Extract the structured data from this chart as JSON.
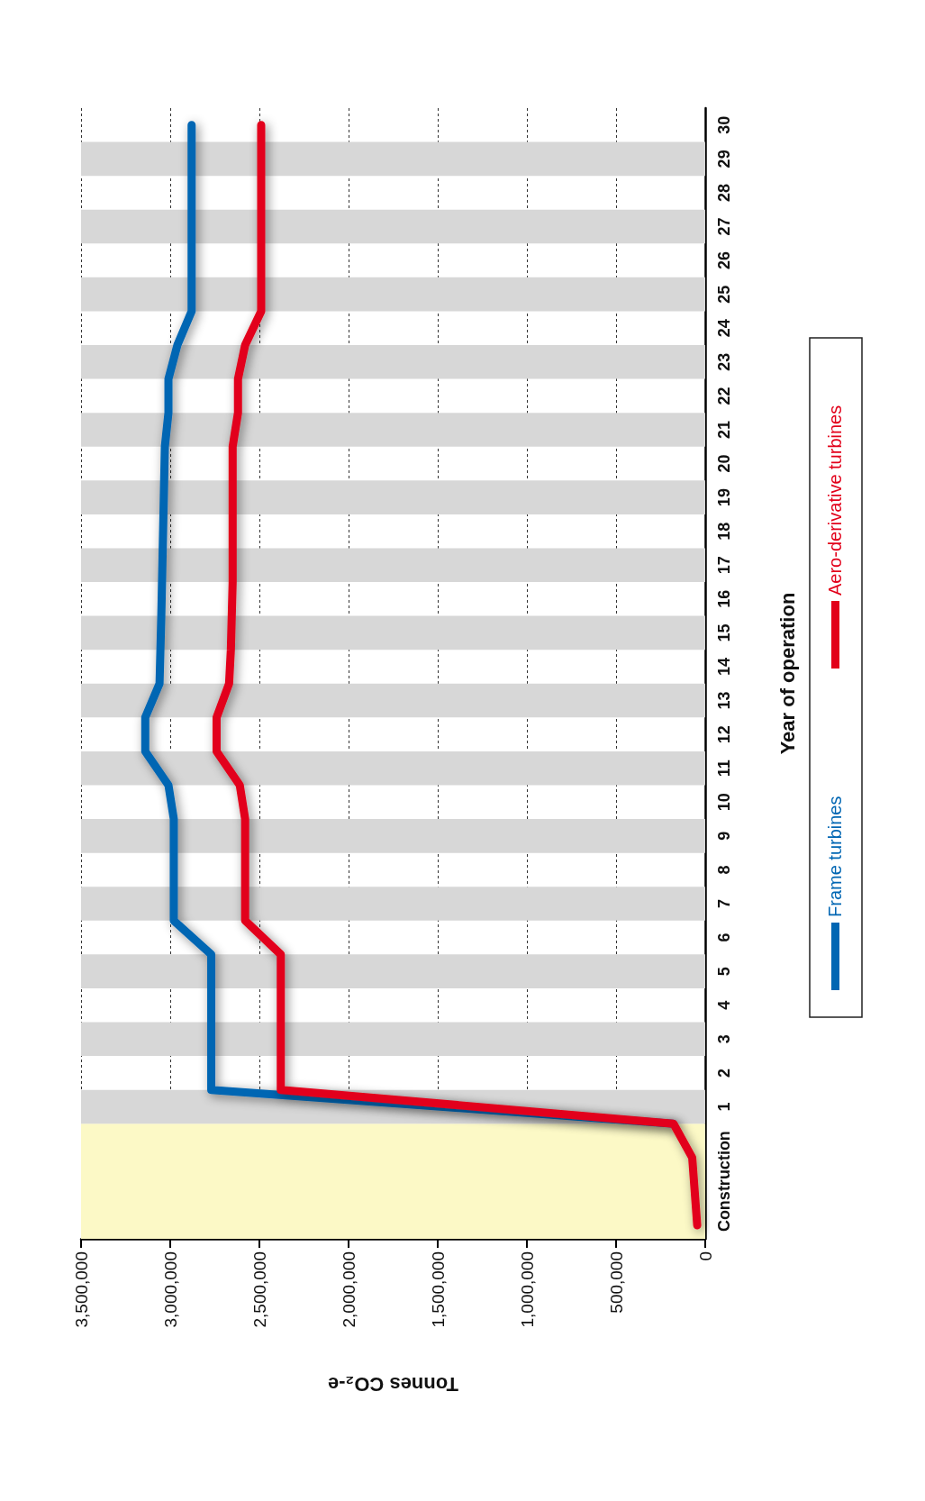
{
  "chart_data": {
    "type": "line",
    "xlabel": "Tonnes CO₂-e",
    "ylabel": "Year of operation",
    "xlim": [
      3500000,
      0
    ],
    "xticks": [
      {
        "value": 0,
        "label": "0"
      },
      {
        "value": 500000,
        "label": "500,000"
      },
      {
        "value": 1000000,
        "label": "1,000,000"
      },
      {
        "value": 1500000,
        "label": "1,500,000"
      },
      {
        "value": 2000000,
        "label": "2,000,000"
      },
      {
        "value": 2500000,
        "label": "2,500,000"
      },
      {
        "value": 3000000,
        "label": "3,000,000"
      },
      {
        "value": 3500000,
        "label": "3,500,000"
      }
    ],
    "ylim": [
      -3.4,
      30
    ],
    "yticks": [
      {
        "value": -1.7,
        "label": "Construction"
      },
      {
        "value": 0.5,
        "label": "1"
      },
      {
        "value": 1.5,
        "label": "2"
      },
      {
        "value": 2.5,
        "label": "3"
      },
      {
        "value": 3.5,
        "label": "4"
      },
      {
        "value": 4.5,
        "label": "5"
      },
      {
        "value": 5.5,
        "label": "6"
      },
      {
        "value": 6.5,
        "label": "7"
      },
      {
        "value": 7.5,
        "label": "8"
      },
      {
        "value": 8.5,
        "label": "9"
      },
      {
        "value": 9.5,
        "label": "10"
      },
      {
        "value": 10.5,
        "label": "11"
      },
      {
        "value": 11.5,
        "label": "12"
      },
      {
        "value": 12.5,
        "label": "13"
      },
      {
        "value": 13.5,
        "label": "14"
      },
      {
        "value": 14.5,
        "label": "15"
      },
      {
        "value": 15.5,
        "label": "16"
      },
      {
        "value": 16.5,
        "label": "17"
      },
      {
        "value": 17.5,
        "label": "18"
      },
      {
        "value": 18.5,
        "label": "19"
      },
      {
        "value": 19.5,
        "label": "20"
      },
      {
        "value": 20.5,
        "label": "21"
      },
      {
        "value": 21.5,
        "label": "22"
      },
      {
        "value": 22.5,
        "label": "23"
      },
      {
        "value": 23.5,
        "label": "24"
      },
      {
        "value": 24.5,
        "label": "25"
      },
      {
        "value": 25.5,
        "label": "26"
      },
      {
        "value": 26.5,
        "label": "27"
      },
      {
        "value": 27.5,
        "label": "28"
      },
      {
        "value": 28.5,
        "label": "29"
      },
      {
        "value": 29.5,
        "label": "30"
      }
    ],
    "grid": "x",
    "legend": "right",
    "marker": "none",
    "line_style": "solid",
    "bands": [
      {
        "axis": "y",
        "from": -3.4,
        "to": 0,
        "color": "#fcf9c6"
      },
      {
        "axis": "y",
        "from": 0,
        "to": 1,
        "color": "#d7d7d7"
      },
      {
        "axis": "y",
        "from": 2,
        "to": 3,
        "color": "#d7d7d7"
      },
      {
        "axis": "y",
        "from": 4,
        "to": 5,
        "color": "#d7d7d7"
      },
      {
        "axis": "y",
        "from": 6,
        "to": 7,
        "color": "#d7d7d7"
      },
      {
        "axis": "y",
        "from": 8,
        "to": 9,
        "color": "#d7d7d7"
      },
      {
        "axis": "y",
        "from": 10,
        "to": 11,
        "color": "#d7d7d7"
      },
      {
        "axis": "y",
        "from": 12,
        "to": 13,
        "color": "#d7d7d7"
      },
      {
        "axis": "y",
        "from": 14,
        "to": 15,
        "color": "#d7d7d7"
      },
      {
        "axis": "y",
        "from": 16,
        "to": 17,
        "color": "#d7d7d7"
      },
      {
        "axis": "y",
        "from": 18,
        "to": 19,
        "color": "#d7d7d7"
      },
      {
        "axis": "y",
        "from": 20,
        "to": 21,
        "color": "#d7d7d7"
      },
      {
        "axis": "y",
        "from": 22,
        "to": 23,
        "color": "#d7d7d7"
      },
      {
        "axis": "y",
        "from": 24,
        "to": 25,
        "color": "#d7d7d7"
      },
      {
        "axis": "y",
        "from": 26,
        "to": 27,
        "color": "#d7d7d7"
      },
      {
        "axis": "y",
        "from": 28,
        "to": 29,
        "color": "#d7d7d7"
      }
    ],
    "series": [
      {
        "name": "Frame turbines",
        "color": "#0066b3",
        "x": [
          180000,
          2770000,
          2770000,
          2980000,
          2980000,
          3010000,
          3140000,
          3140000,
          3060000,
          3050000,
          3030000,
          3010000,
          3010000,
          2960000,
          2880000,
          2880000
        ],
        "values": [
          0,
          1,
          5,
          6,
          9,
          10,
          11,
          12,
          13,
          15,
          20,
          21,
          22,
          23,
          24,
          29.5
        ]
      },
      {
        "name": "Aero-derivative turbines",
        "color": "#e2001a",
        "x": [
          45000,
          73000,
          178000,
          2380000,
          2380000,
          2580000,
          2580000,
          2610000,
          2740000,
          2740000,
          2670000,
          2660000,
          2650000,
          2650000,
          2620000,
          2620000,
          2580000,
          2490000,
          2490000
        ],
        "values": [
          -3,
          -1,
          0,
          1,
          5,
          6,
          9,
          10,
          11,
          12,
          13,
          14,
          16,
          20,
          21,
          22,
          23,
          24,
          29.5
        ]
      }
    ]
  }
}
